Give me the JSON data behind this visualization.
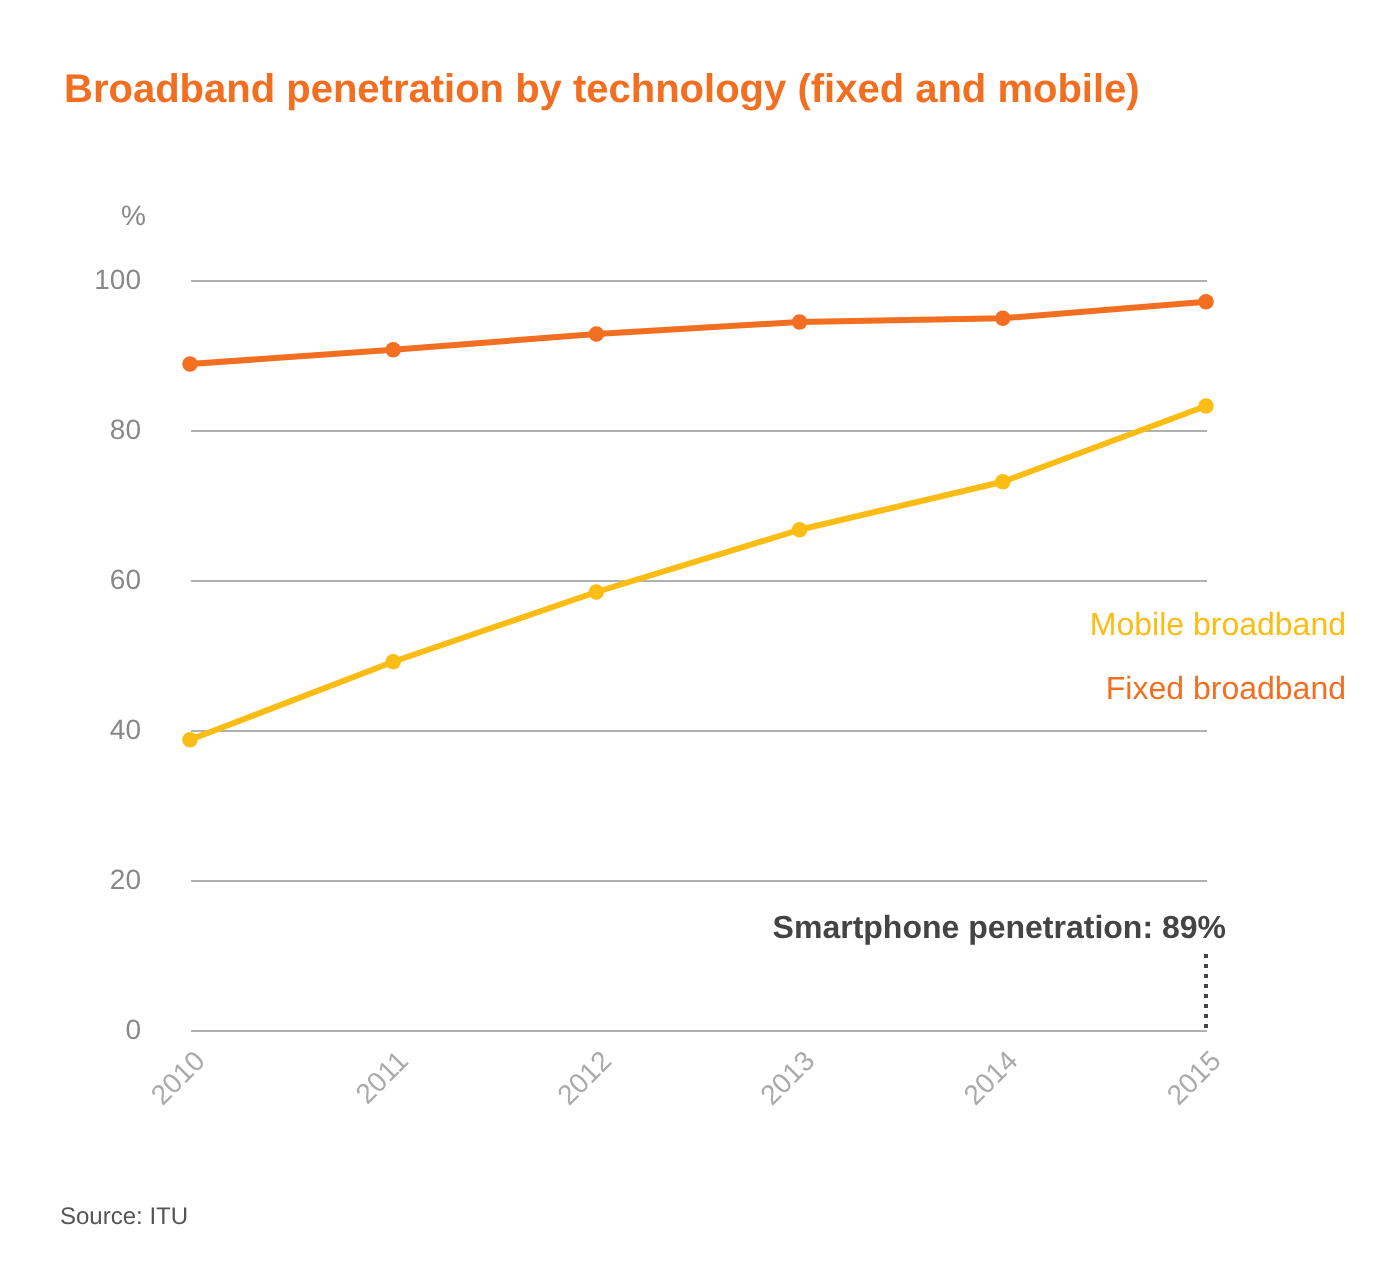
{
  "chart_data": {
    "type": "line",
    "title": "Broadband penetration by technology (fixed and mobile)",
    "ylabel": "%",
    "x": [
      2010,
      2011,
      2012,
      2013,
      2014,
      2015
    ],
    "series": [
      {
        "name": "Mobile broadband",
        "color": "#fbbd14",
        "values": [
          38.7,
          49.1,
          58.4,
          66.7,
          73.1,
          83.2
        ]
      },
      {
        "name": "Fixed broadband",
        "color": "#f26f21",
        "values": [
          88.8,
          90.7,
          92.8,
          94.4,
          94.9,
          97.1
        ]
      }
    ],
    "xlim": [
      2010,
      2015
    ],
    "xticks": [
      2010,
      2011,
      2012,
      2013,
      2014,
      2015
    ],
    "ylim": [
      0,
      100
    ],
    "yticks": [
      0,
      20,
      40,
      60,
      80,
      100
    ],
    "grid": "y",
    "legend": "right",
    "marker": "circle",
    "line_style": "solid",
    "annotations": [
      "Smartphone penetration:   89%",
      "Source:  ITU"
    ]
  }
}
